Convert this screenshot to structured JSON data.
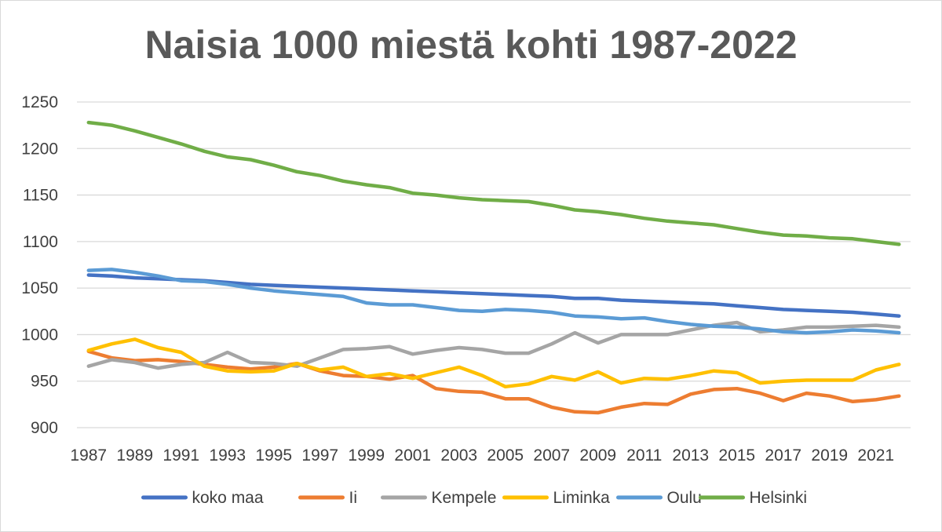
{
  "chart_data": {
    "type": "line",
    "title": "Naisia 1000 miestä kohti 1987-2022",
    "xlabel": "",
    "ylabel": "",
    "ylim": [
      900,
      1250
    ],
    "yticks": [
      900,
      950,
      1000,
      1050,
      1100,
      1150,
      1200,
      1250
    ],
    "x": [
      1987,
      1988,
      1989,
      1990,
      1991,
      1992,
      1993,
      1994,
      1995,
      1996,
      1997,
      1998,
      1999,
      2000,
      2001,
      2002,
      2003,
      2004,
      2005,
      2006,
      2007,
      2008,
      2009,
      2010,
      2011,
      2012,
      2013,
      2014,
      2015,
      2016,
      2017,
      2018,
      2019,
      2020,
      2021,
      2022
    ],
    "xtick_labels": [
      "1987",
      "1989",
      "1991",
      "1993",
      "1995",
      "1997",
      "1999",
      "2001",
      "2003",
      "2005",
      "2007",
      "2009",
      "2011",
      "2013",
      "2015",
      "2017",
      "2019",
      "2021"
    ],
    "grid": true,
    "legend_position": "bottom",
    "series": [
      {
        "name": "koko maa",
        "color": "#4472c4",
        "values": [
          1064,
          1063,
          1061,
          1060,
          1059,
          1058,
          1056,
          1054,
          1053,
          1052,
          1051,
          1050,
          1049,
          1048,
          1047,
          1046,
          1045,
          1044,
          1043,
          1042,
          1041,
          1039,
          1039,
          1037,
          1036,
          1035,
          1034,
          1033,
          1031,
          1029,
          1027,
          1026,
          1025,
          1024,
          1022,
          1020
        ]
      },
      {
        "name": "Ii",
        "color": "#ed7d31",
        "values": [
          982,
          975,
          972,
          973,
          971,
          968,
          965,
          963,
          965,
          969,
          961,
          956,
          955,
          952,
          956,
          942,
          939,
          938,
          931,
          931,
          922,
          917,
          916,
          922,
          926,
          925,
          936,
          941,
          942,
          937,
          929,
          937,
          934,
          928,
          930,
          934
        ]
      },
      {
        "name": "Kempele",
        "color": "#a5a5a5",
        "values": [
          966,
          973,
          970,
          964,
          968,
          970,
          981,
          970,
          969,
          966,
          975,
          984,
          985,
          987,
          979,
          983,
          986,
          984,
          980,
          980,
          990,
          1002,
          991,
          1000,
          1000,
          1000,
          1005,
          1010,
          1013,
          1003,
          1005,
          1008,
          1008,
          1009,
          1010,
          1008
        ]
      },
      {
        "name": "Liminka",
        "color": "#ffc000",
        "values": [
          983,
          990,
          995,
          986,
          981,
          966,
          961,
          960,
          961,
          969,
          962,
          965,
          955,
          958,
          953,
          959,
          965,
          956,
          944,
          947,
          955,
          951,
          960,
          948,
          953,
          952,
          956,
          961,
          959,
          948,
          950,
          951,
          951,
          951,
          962,
          968
        ]
      },
      {
        "name": "Oulu",
        "color": "#5b9bd5",
        "values": [
          1069,
          1070,
          1067,
          1063,
          1058,
          1057,
          1054,
          1050,
          1047,
          1045,
          1043,
          1041,
          1034,
          1032,
          1032,
          1029,
          1026,
          1025,
          1027,
          1026,
          1024,
          1020,
          1019,
          1017,
          1018,
          1014,
          1011,
          1009,
          1008,
          1006,
          1003,
          1002,
          1003,
          1005,
          1004,
          1002
        ]
      },
      {
        "name": "Helsinki",
        "color": "#70ad47",
        "values": [
          1228,
          1225,
          1219,
          1212,
          1205,
          1197,
          1191,
          1188,
          1182,
          1175,
          1171,
          1165,
          1161,
          1158,
          1152,
          1150,
          1147,
          1145,
          1144,
          1143,
          1139,
          1134,
          1132,
          1129,
          1125,
          1122,
          1120,
          1118,
          1114,
          1110,
          1107,
          1106,
          1104,
          1103,
          1100,
          1097
        ]
      }
    ]
  }
}
